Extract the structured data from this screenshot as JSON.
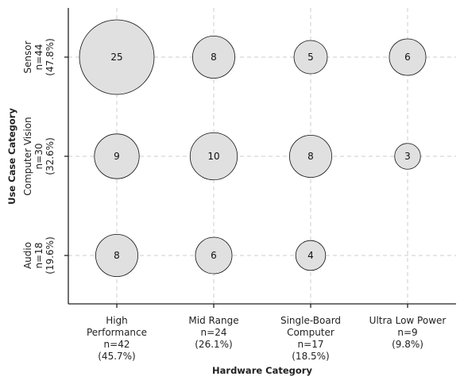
{
  "chart_data": {
    "type": "scatter",
    "subtype": "bubble",
    "xlabel": "Hardware Category",
    "ylabel": "Use Case Category",
    "x_categories": [
      {
        "lines": [
          "High",
          "Performance",
          "n=42",
          "(45.7%)"
        ]
      },
      {
        "lines": [
          "Mid Range",
          "n=24",
          "(26.1%)"
        ]
      },
      {
        "lines": [
          "Single-Board",
          "Computer",
          "n=17",
          "(18.5%)"
        ]
      },
      {
        "lines": [
          "Ultra Low Power",
          "n=9",
          "(9.8%)"
        ]
      }
    ],
    "y_categories": [
      {
        "lines": [
          "Audio",
          "n=18",
          "(19.6%)"
        ]
      },
      {
        "lines": [
          "Computer Vision",
          "n=30",
          "(32.6%)"
        ]
      },
      {
        "lines": [
          "Sensor",
          "n=44",
          "(47.8%)"
        ]
      }
    ],
    "points": [
      {
        "x": 0,
        "y": 2,
        "value": 25
      },
      {
        "x": 1,
        "y": 2,
        "value": 8
      },
      {
        "x": 2,
        "y": 2,
        "value": 5
      },
      {
        "x": 3,
        "y": 2,
        "value": 6
      },
      {
        "x": 0,
        "y": 1,
        "value": 9
      },
      {
        "x": 1,
        "y": 1,
        "value": 10
      },
      {
        "x": 2,
        "y": 1,
        "value": 8
      },
      {
        "x": 3,
        "y": 1,
        "value": 3
      },
      {
        "x": 0,
        "y": 0,
        "value": 8
      },
      {
        "x": 1,
        "y": 0,
        "value": 6
      },
      {
        "x": 2,
        "y": 0,
        "value": 4
      }
    ],
    "grid": true,
    "colors": {
      "bubble_fill": "#e0e0e0",
      "bubble_stroke": "#111111",
      "grid": "#cccccc"
    }
  }
}
